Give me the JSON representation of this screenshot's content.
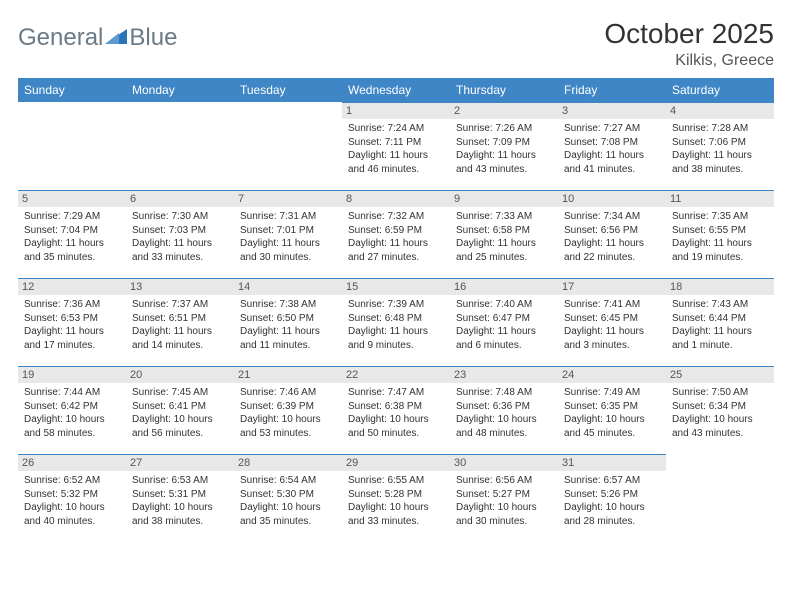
{
  "logo": {
    "text1": "General",
    "text2": "Blue"
  },
  "title": "October 2025",
  "subtitle": "Kilkis, Greece",
  "colors": {
    "header_bg": "#3f86c7",
    "header_text": "#ffffff",
    "daybar_bg": "#e8e8e8",
    "daybar_text": "#555555",
    "body_text": "#333333",
    "logo_text": "#6b7a87",
    "logo_mark": "#2b74b8",
    "page_bg": "#ffffff",
    "row_border": "#3f86c7"
  },
  "fonts": {
    "title_size": 28,
    "subtitle_size": 16,
    "header_size": 12,
    "day_size": 11,
    "info_size": 10
  },
  "day_headers": [
    "Sunday",
    "Monday",
    "Tuesday",
    "Wednesday",
    "Thursday",
    "Friday",
    "Saturday"
  ],
  "weeks": [
    [
      null,
      null,
      null,
      {
        "d": "1",
        "sr": "7:24 AM",
        "ss": "7:11 PM",
        "dl": "11 hours and 46 minutes."
      },
      {
        "d": "2",
        "sr": "7:26 AM",
        "ss": "7:09 PM",
        "dl": "11 hours and 43 minutes."
      },
      {
        "d": "3",
        "sr": "7:27 AM",
        "ss": "7:08 PM",
        "dl": "11 hours and 41 minutes."
      },
      {
        "d": "4",
        "sr": "7:28 AM",
        "ss": "7:06 PM",
        "dl": "11 hours and 38 minutes."
      }
    ],
    [
      {
        "d": "5",
        "sr": "7:29 AM",
        "ss": "7:04 PM",
        "dl": "11 hours and 35 minutes."
      },
      {
        "d": "6",
        "sr": "7:30 AM",
        "ss": "7:03 PM",
        "dl": "11 hours and 33 minutes."
      },
      {
        "d": "7",
        "sr": "7:31 AM",
        "ss": "7:01 PM",
        "dl": "11 hours and 30 minutes."
      },
      {
        "d": "8",
        "sr": "7:32 AM",
        "ss": "6:59 PM",
        "dl": "11 hours and 27 minutes."
      },
      {
        "d": "9",
        "sr": "7:33 AM",
        "ss": "6:58 PM",
        "dl": "11 hours and 25 minutes."
      },
      {
        "d": "10",
        "sr": "7:34 AM",
        "ss": "6:56 PM",
        "dl": "11 hours and 22 minutes."
      },
      {
        "d": "11",
        "sr": "7:35 AM",
        "ss": "6:55 PM",
        "dl": "11 hours and 19 minutes."
      }
    ],
    [
      {
        "d": "12",
        "sr": "7:36 AM",
        "ss": "6:53 PM",
        "dl": "11 hours and 17 minutes."
      },
      {
        "d": "13",
        "sr": "7:37 AM",
        "ss": "6:51 PM",
        "dl": "11 hours and 14 minutes."
      },
      {
        "d": "14",
        "sr": "7:38 AM",
        "ss": "6:50 PM",
        "dl": "11 hours and 11 minutes."
      },
      {
        "d": "15",
        "sr": "7:39 AM",
        "ss": "6:48 PM",
        "dl": "11 hours and 9 minutes."
      },
      {
        "d": "16",
        "sr": "7:40 AM",
        "ss": "6:47 PM",
        "dl": "11 hours and 6 minutes."
      },
      {
        "d": "17",
        "sr": "7:41 AM",
        "ss": "6:45 PM",
        "dl": "11 hours and 3 minutes."
      },
      {
        "d": "18",
        "sr": "7:43 AM",
        "ss": "6:44 PM",
        "dl": "11 hours and 1 minute."
      }
    ],
    [
      {
        "d": "19",
        "sr": "7:44 AM",
        "ss": "6:42 PM",
        "dl": "10 hours and 58 minutes."
      },
      {
        "d": "20",
        "sr": "7:45 AM",
        "ss": "6:41 PM",
        "dl": "10 hours and 56 minutes."
      },
      {
        "d": "21",
        "sr": "7:46 AM",
        "ss": "6:39 PM",
        "dl": "10 hours and 53 minutes."
      },
      {
        "d": "22",
        "sr": "7:47 AM",
        "ss": "6:38 PM",
        "dl": "10 hours and 50 minutes."
      },
      {
        "d": "23",
        "sr": "7:48 AM",
        "ss": "6:36 PM",
        "dl": "10 hours and 48 minutes."
      },
      {
        "d": "24",
        "sr": "7:49 AM",
        "ss": "6:35 PM",
        "dl": "10 hours and 45 minutes."
      },
      {
        "d": "25",
        "sr": "7:50 AM",
        "ss": "6:34 PM",
        "dl": "10 hours and 43 minutes."
      }
    ],
    [
      {
        "d": "26",
        "sr": "6:52 AM",
        "ss": "5:32 PM",
        "dl": "10 hours and 40 minutes."
      },
      {
        "d": "27",
        "sr": "6:53 AM",
        "ss": "5:31 PM",
        "dl": "10 hours and 38 minutes."
      },
      {
        "d": "28",
        "sr": "6:54 AM",
        "ss": "5:30 PM",
        "dl": "10 hours and 35 minutes."
      },
      {
        "d": "29",
        "sr": "6:55 AM",
        "ss": "5:28 PM",
        "dl": "10 hours and 33 minutes."
      },
      {
        "d": "30",
        "sr": "6:56 AM",
        "ss": "5:27 PM",
        "dl": "10 hours and 30 minutes."
      },
      {
        "d": "31",
        "sr": "6:57 AM",
        "ss": "5:26 PM",
        "dl": "10 hours and 28 minutes."
      },
      null
    ]
  ],
  "labels": {
    "sunrise": "Sunrise:",
    "sunset": "Sunset:",
    "daylight": "Daylight:"
  }
}
